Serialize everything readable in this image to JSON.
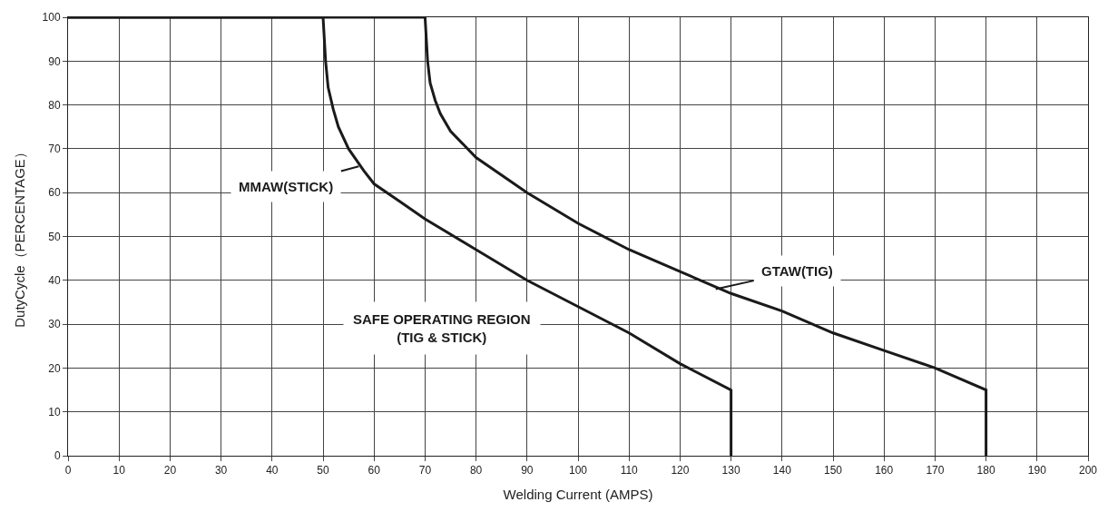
{
  "chart_data": {
    "type": "line",
    "xlabel": "Welding Current (AMPS)",
    "ylabel": "DutyCycle（PERCENTAGE）",
    "series": [
      {
        "color": "#1a1a1a",
        "x": [
          0,
          50,
          50.5,
          51,
          52,
          53,
          55,
          58,
          60,
          65,
          70,
          80,
          90,
          100,
          110,
          120,
          130,
          130
        ],
        "values": [
          100,
          100,
          90,
          84,
          79,
          75,
          70,
          65,
          62,
          58,
          54,
          47,
          40,
          34,
          28,
          21,
          15,
          0
        ]
      },
      {
        "color": "#1a1a1a",
        "x": [
          0,
          70,
          70.5,
          71,
          72,
          73,
          75,
          80,
          90,
          100,
          110,
          120,
          130,
          140,
          150,
          160,
          170,
          180,
          180
        ],
        "values": [
          100,
          100,
          90,
          85,
          81,
          78,
          74,
          68,
          60,
          53,
          47,
          42,
          37,
          33,
          28,
          24,
          20,
          15,
          0
        ]
      }
    ],
    "annotations": [
      {
        "text": "MMAW(STICK)",
        "x": 57,
        "y": 66
      },
      {
        "text": "GTAW(TIG)",
        "x": 127,
        "y": 38
      },
      "SAFE OPERATING REGION\n(TIG & STICK)"
    ],
    "xlim": [
      0,
      200
    ],
    "xticks": [
      0,
      10,
      20,
      30,
      40,
      50,
      60,
      70,
      80,
      90,
      100,
      110,
      120,
      130,
      140,
      150,
      160,
      170,
      180,
      190,
      200
    ],
    "ylim": [
      0,
      100
    ],
    "yticks": [
      0,
      10,
      20,
      30,
      40,
      50,
      60,
      70,
      80,
      90,
      100
    ],
    "grid": true,
    "marker": "none",
    "line_style": "solid"
  }
}
